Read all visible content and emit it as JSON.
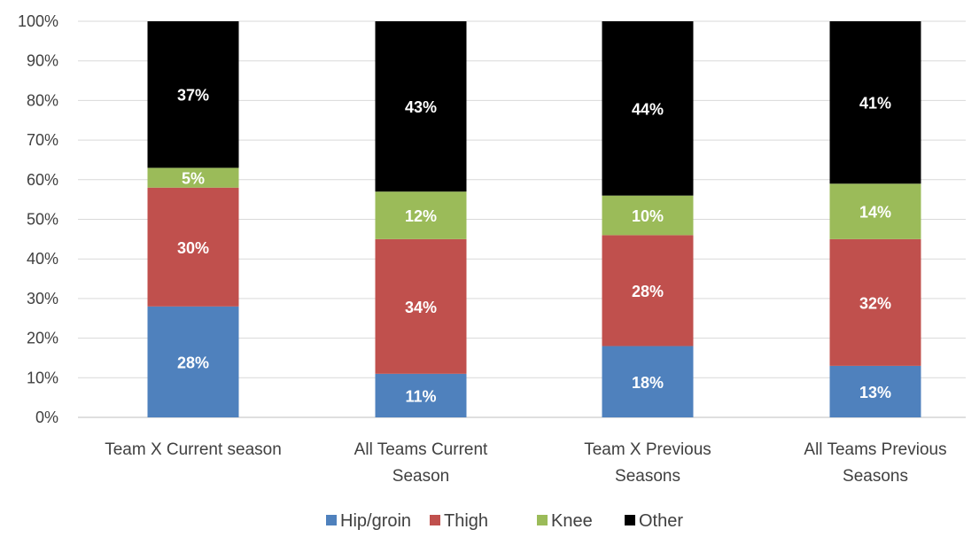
{
  "chart_data": {
    "type": "bar",
    "stacked": true,
    "percent_stacked": true,
    "categories": [
      [
        "Team X Current season"
      ],
      [
        "All Teams Current",
        "Season"
      ],
      [
        "Team X Previous",
        "Seasons"
      ],
      [
        "All Teams Previous",
        "Seasons"
      ]
    ],
    "series": [
      {
        "name": "Hip/groin",
        "color": "#4F81BD",
        "values": [
          28,
          11,
          18,
          13
        ],
        "labels": [
          "28%",
          "11%",
          "18%",
          "13%"
        ]
      },
      {
        "name": "Thigh",
        "color": "#C0504D",
        "values": [
          30,
          34,
          28,
          32
        ],
        "labels": [
          "30%",
          "34%",
          "28%",
          "32%"
        ]
      },
      {
        "name": "Knee",
        "color": "#9BBB59",
        "values": [
          5,
          12,
          10,
          14
        ],
        "labels": [
          "5%",
          "12%",
          "10%",
          "14%"
        ]
      },
      {
        "name": "Other",
        "color": "#000000",
        "values": [
          37,
          43,
          44,
          41
        ],
        "labels": [
          "37%",
          "43%",
          "44%",
          "41%"
        ]
      }
    ],
    "y_ticks": [
      "0%",
      "10%",
      "20%",
      "30%",
      "40%",
      "50%",
      "60%",
      "70%",
      "80%",
      "90%",
      "100%"
    ],
    "ylim": [
      0,
      100
    ],
    "grid": true,
    "legend_position": "bottom",
    "title": "",
    "xlabel": "",
    "ylabel": ""
  }
}
